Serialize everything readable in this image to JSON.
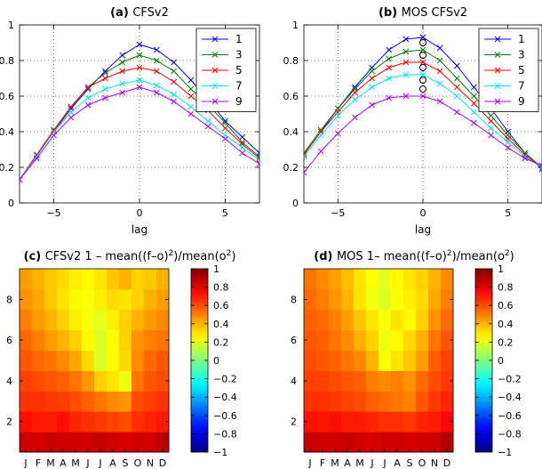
{
  "chart_data": [
    {
      "type": "line",
      "panel": "a",
      "title_prefix": "(a)",
      "title": "CFSv2",
      "xlabel": "lag",
      "ylabel": "",
      "xlim": [
        -7,
        7
      ],
      "ylim": [
        0,
        1
      ],
      "xticks": [
        -5,
        0,
        5
      ],
      "yticks": [
        0,
        0.2,
        0.4,
        0.6,
        0.8,
        1
      ],
      "ytick_labels": [
        "0",
        "0.2",
        "0.4",
        "0.6",
        "0.8",
        "1"
      ],
      "grid": true,
      "legend": "top-right",
      "x": [
        -7,
        -6,
        -5,
        -4,
        -3,
        -2,
        -1,
        0,
        1,
        2,
        3,
        4,
        5,
        6,
        7
      ],
      "series": [
        {
          "name": "1",
          "color": "#0000ff",
          "values": [
            0.13,
            0.27,
            0.4,
            0.53,
            0.64,
            0.74,
            0.83,
            0.89,
            0.86,
            0.79,
            0.69,
            0.58,
            0.46,
            0.37,
            0.28
          ]
        },
        {
          "name": "3",
          "color": "#008000",
          "values": [
            0.13,
            0.27,
            0.41,
            0.54,
            0.65,
            0.73,
            0.79,
            0.83,
            0.8,
            0.74,
            0.64,
            0.55,
            0.45,
            0.34,
            0.26
          ]
        },
        {
          "name": "5",
          "color": "#ff0000",
          "values": [
            0.13,
            0.27,
            0.41,
            0.54,
            0.65,
            0.7,
            0.74,
            0.76,
            0.74,
            0.68,
            0.6,
            0.52,
            0.42,
            0.33,
            0.25
          ]
        },
        {
          "name": "7",
          "color": "#00e5e5",
          "values": [
            0.13,
            0.26,
            0.4,
            0.51,
            0.59,
            0.64,
            0.67,
            0.69,
            0.66,
            0.61,
            0.54,
            0.46,
            0.38,
            0.31,
            0.24
          ]
        },
        {
          "name": "9",
          "color": "#b000ff",
          "values": [
            0.13,
            0.25,
            0.38,
            0.48,
            0.55,
            0.59,
            0.62,
            0.65,
            0.62,
            0.57,
            0.5,
            0.43,
            0.36,
            0.28,
            0.22
          ]
        }
      ]
    },
    {
      "type": "line",
      "panel": "b",
      "title_prefix": "(b)",
      "title": "MOS CFSv2",
      "xlabel": "lag",
      "ylabel": "",
      "xlim": [
        -7,
        7
      ],
      "ylim": [
        0,
        1
      ],
      "xticks": [
        -5,
        0,
        5
      ],
      "yticks": [
        0,
        0.2,
        0.4,
        0.6,
        0.8,
        1
      ],
      "ytick_labels": [
        "0",
        "0.2",
        "0.4",
        "0.6",
        "0.8",
        "1"
      ],
      "grid": true,
      "legend": "top-right",
      "x": [
        -7,
        -6,
        -5,
        -4,
        -3,
        -2,
        -1,
        0,
        1,
        2,
        3,
        4,
        5,
        6,
        7
      ],
      "series": [
        {
          "name": "1",
          "color": "#0000ff",
          "values": [
            0.27,
            0.4,
            0.53,
            0.65,
            0.76,
            0.86,
            0.92,
            0.93,
            0.87,
            0.77,
            0.65,
            0.53,
            0.4,
            0.28,
            0.19
          ]
        },
        {
          "name": "3",
          "color": "#008000",
          "values": [
            0.28,
            0.41,
            0.53,
            0.64,
            0.74,
            0.81,
            0.85,
            0.86,
            0.8,
            0.7,
            0.6,
            0.49,
            0.38,
            0.28,
            0.2
          ]
        },
        {
          "name": "5",
          "color": "#ff0000",
          "values": [
            0.27,
            0.4,
            0.51,
            0.62,
            0.7,
            0.76,
            0.79,
            0.79,
            0.74,
            0.65,
            0.56,
            0.46,
            0.36,
            0.27,
            0.2
          ]
        },
        {
          "name": "7",
          "color": "#00e5e5",
          "values": [
            0.26,
            0.38,
            0.49,
            0.58,
            0.65,
            0.7,
            0.72,
            0.72,
            0.67,
            0.6,
            0.51,
            0.42,
            0.34,
            0.26,
            0.2
          ]
        },
        {
          "name": "9",
          "color": "#b000ff",
          "values": [
            0.17,
            0.29,
            0.39,
            0.48,
            0.55,
            0.59,
            0.6,
            0.6,
            0.57,
            0.51,
            0.45,
            0.38,
            0.31,
            0.25,
            0.21
          ]
        }
      ],
      "circle_markers": {
        "x": [
          0,
          0,
          0,
          0,
          0
        ],
        "y": [
          0.9,
          0.83,
          0.76,
          0.69,
          0.64
        ]
      }
    },
    {
      "type": "heatmap",
      "panel": "c",
      "title_prefix": "(c)",
      "title": "CFSv2 1 – mean((f–o)",
      "title_sup": "2",
      "title_mid": ")/mean(o",
      "title_sup2": "2",
      "title_end": ")",
      "xlabel": "",
      "ylabel": "",
      "x_categories": [
        "J",
        "F",
        "M",
        "A",
        "M",
        "J",
        "J",
        "A",
        "S",
        "O",
        "N",
        "D"
      ],
      "y_range": [
        0.5,
        9.5
      ],
      "yticks": [
        2,
        4,
        6,
        8
      ],
      "vlim": [
        -1,
        1
      ],
      "values": [
        [
          0.85,
          0.83,
          0.86,
          0.85,
          0.84,
          0.85,
          0.86,
          0.85,
          0.82,
          0.84,
          0.83,
          0.88
        ],
        [
          0.72,
          0.7,
          0.7,
          0.72,
          0.68,
          0.66,
          0.64,
          0.62,
          0.6,
          0.66,
          0.68,
          0.7
        ],
        [
          0.65,
          0.66,
          0.64,
          0.63,
          0.6,
          0.56,
          0.52,
          0.48,
          0.46,
          0.6,
          0.63,
          0.65
        ],
        [
          0.62,
          0.6,
          0.58,
          0.56,
          0.52,
          0.46,
          0.34,
          0.3,
          0.22,
          0.52,
          0.58,
          0.6
        ],
        [
          0.58,
          0.55,
          0.52,
          0.48,
          0.42,
          0.32,
          0.18,
          0.26,
          0.32,
          0.48,
          0.55,
          0.58
        ],
        [
          0.55,
          0.5,
          0.45,
          0.4,
          0.34,
          0.26,
          0.18,
          0.24,
          0.34,
          0.46,
          0.5,
          0.52
        ],
        [
          0.5,
          0.45,
          0.4,
          0.34,
          0.28,
          0.24,
          0.2,
          0.28,
          0.34,
          0.4,
          0.45,
          0.48
        ],
        [
          0.46,
          0.42,
          0.36,
          0.3,
          0.26,
          0.24,
          0.28,
          0.32,
          0.3,
          0.34,
          0.4,
          0.44
        ],
        [
          0.44,
          0.4,
          0.36,
          0.32,
          0.28,
          0.26,
          0.3,
          0.36,
          0.4,
          0.34,
          0.36,
          0.4
        ]
      ],
      "colorbar_ticks": [
        1,
        0.8,
        0.6,
        0.4,
        0.2,
        0,
        -0.2,
        -0.4,
        -0.6,
        -0.8,
        -1
      ],
      "colorbar_labels": [
        "1",
        "0.8",
        "0.6",
        "0.4",
        "0.2",
        "0",
        "−0.2",
        "−0.4",
        "−0.6",
        "−0.8",
        "−1"
      ]
    },
    {
      "type": "heatmap",
      "panel": "d",
      "title_prefix": "(d)",
      "title": "MOS 1– mean((f–o)",
      "title_sup": "2",
      "title_mid": ")/mean(o",
      "title_sup2": "2",
      "title_end": ")",
      "xlabel": "",
      "ylabel": "",
      "x_categories": [
        "J",
        "F",
        "M",
        "A",
        "M",
        "J",
        "J",
        "A",
        "S",
        "O",
        "N",
        "D"
      ],
      "y_range": [
        0.5,
        9.5
      ],
      "yticks": [
        2,
        4,
        6,
        8
      ],
      "vlim": [
        -1,
        1
      ],
      "values": [
        [
          0.86,
          0.84,
          0.85,
          0.86,
          0.84,
          0.83,
          0.84,
          0.85,
          0.83,
          0.84,
          0.84,
          0.9
        ],
        [
          0.72,
          0.71,
          0.72,
          0.7,
          0.7,
          0.68,
          0.66,
          0.66,
          0.64,
          0.68,
          0.7,
          0.74
        ],
        [
          0.66,
          0.66,
          0.64,
          0.62,
          0.6,
          0.56,
          0.54,
          0.52,
          0.5,
          0.58,
          0.64,
          0.68
        ],
        [
          0.62,
          0.62,
          0.6,
          0.58,
          0.56,
          0.5,
          0.48,
          0.5,
          0.46,
          0.54,
          0.6,
          0.64
        ],
        [
          0.6,
          0.58,
          0.56,
          0.52,
          0.48,
          0.4,
          0.24,
          0.3,
          0.36,
          0.44,
          0.56,
          0.62
        ],
        [
          0.58,
          0.56,
          0.52,
          0.48,
          0.4,
          0.34,
          0.22,
          0.26,
          0.32,
          0.4,
          0.52,
          0.58
        ],
        [
          0.56,
          0.54,
          0.5,
          0.44,
          0.36,
          0.3,
          0.24,
          0.3,
          0.26,
          0.34,
          0.46,
          0.54
        ],
        [
          0.54,
          0.5,
          0.46,
          0.4,
          0.3,
          0.22,
          0.18,
          0.24,
          0.28,
          0.32,
          0.42,
          0.5
        ],
        [
          0.52,
          0.48,
          0.44,
          0.38,
          0.3,
          0.24,
          0.2,
          0.26,
          0.3,
          0.34,
          0.4,
          0.48
        ]
      ],
      "colorbar_ticks": [
        1,
        0.8,
        0.6,
        0.4,
        0.2,
        0,
        -0.2,
        -0.4,
        -0.6,
        -0.8,
        -1
      ],
      "colorbar_labels": [
        "1",
        "0.8",
        "0.6",
        "0.4",
        "0.2",
        "0",
        "−0.2",
        "−0.4",
        "−0.6",
        "−0.8",
        "−1"
      ]
    }
  ]
}
